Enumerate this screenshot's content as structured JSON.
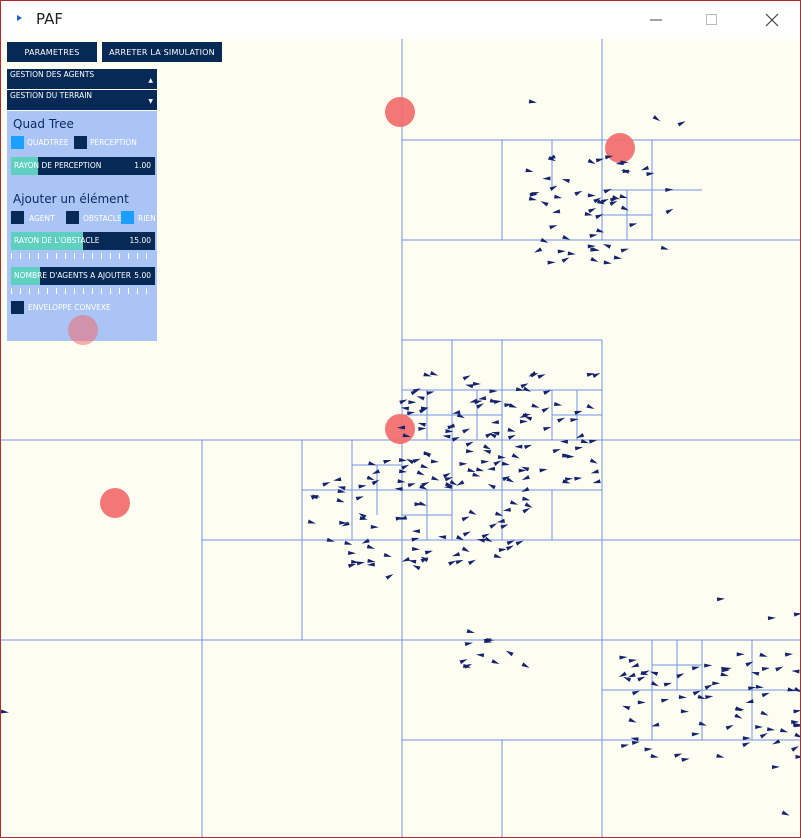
{
  "window": {
    "title": "PAF",
    "icon": "play-triangle-icon",
    "controls": [
      "minimize-icon",
      "maximize-icon",
      "close-icon"
    ]
  },
  "toolbar": {
    "parametres": "PARAMETRES",
    "stop": "ARRETER LA SIMULATION"
  },
  "groups": {
    "agents": "GESTION DES AGENTS",
    "terrain": "GESTION DU TERRAIN"
  },
  "quadtree": {
    "title": "Quad Tree",
    "toggle_quadtree": "QUADTREE",
    "toggle_perception": "PERCEPTION",
    "perception_label": "RAYON DE PERCEPTION",
    "perception_value": "1.00",
    "perception_fraction": 0.19
  },
  "add_element": {
    "title": "Ajouter un élément",
    "opt_agent": "AGENT",
    "opt_obstacle": "OBSTACLE",
    "opt_rien": "RIEN",
    "obstacle_radius_label": "RAYON DE L'OBSTACLE",
    "obstacle_radius_value": "15.00",
    "obstacle_radius_fraction": 0.5,
    "agents_count_label": "NOMBRE D'AGENTS A AJOUTER",
    "agents_count_value": "5.00",
    "agents_count_fraction": 0.2,
    "convex_hull": "ENVELOPPE CONVEXE"
  },
  "colors": {
    "background": "#fdfdf1",
    "quadtree_lines": "#6f93e8",
    "agent": "#14236b",
    "obstacle": "#f26b6b",
    "panel": "#a9c4f5",
    "control_dark": "#062a55",
    "slider_fill": "#5fd0c0",
    "toggle_on": "#1aa0ff"
  }
}
